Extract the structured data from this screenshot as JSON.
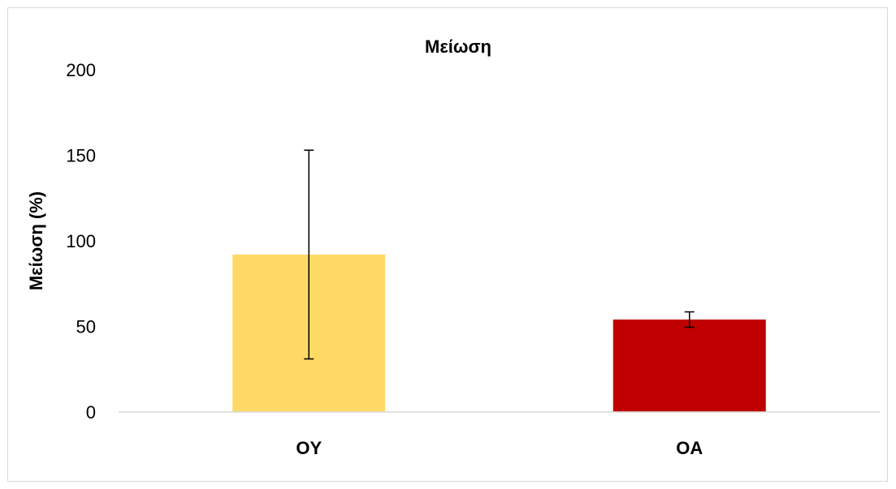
{
  "chart_data": {
    "type": "bar",
    "title": "Μείωση",
    "ylabel": "Μείωση (%)",
    "xlabel": "",
    "categories": [
      "OY",
      "OA"
    ],
    "values": [
      92,
      54
    ],
    "errors": [
      61,
      4.5
    ],
    "colors": [
      "#FFD966",
      "#C00000"
    ],
    "ylim": [
      0,
      200
    ],
    "yticks": [
      "0",
      "50",
      "100",
      "150",
      "200"
    ],
    "grid": false,
    "legend": "none"
  }
}
